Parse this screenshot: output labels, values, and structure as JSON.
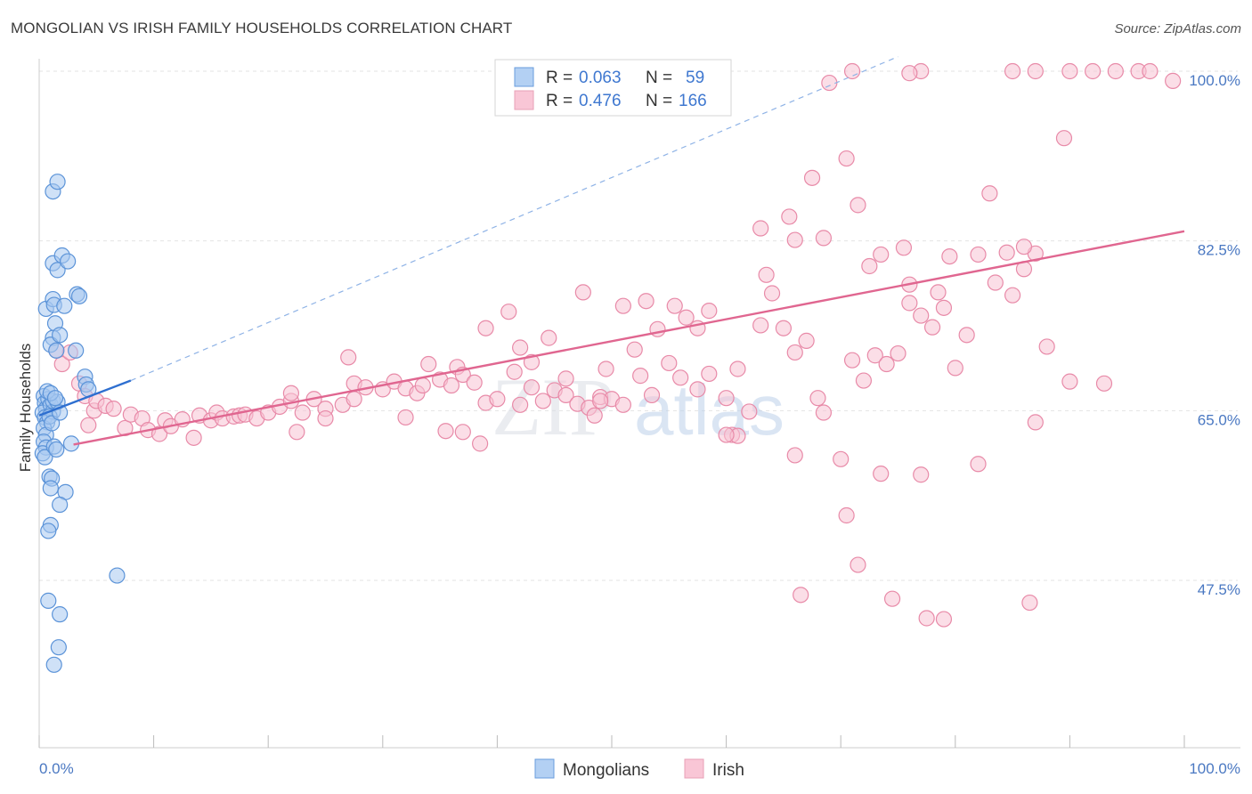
{
  "title": "MONGOLIAN VS IRISH FAMILY HOUSEHOLDS CORRELATION CHART",
  "source": "Source: ZipAtlas.com",
  "chart_data": {
    "type": "scatter",
    "ylabel": "Family Households",
    "xlim": [
      0,
      100
    ],
    "ylim": [
      32,
      101
    ],
    "x_tick_labels": {
      "left": "0.0%",
      "right": "100.0%"
    },
    "y_ticks": [
      {
        "value": 100.0,
        "label": "100.0%"
      },
      {
        "value": 82.5,
        "label": "82.5%"
      },
      {
        "value": 65.0,
        "label": "65.0%"
      },
      {
        "value": 47.5,
        "label": "47.5%"
      }
    ],
    "watermark": {
      "zip": "ZIP",
      "atlas": "atlas"
    },
    "legend": {
      "r_label": "R =",
      "n_label": "N =",
      "entries": [
        {
          "r": "0.063",
          "n": "59"
        },
        {
          "r": "0.476",
          "n": "166"
        }
      ]
    },
    "colors": {
      "mongolians_fill": "#a8c8f0",
      "mongolians_stroke": "#5b93d8",
      "mongolians_line": "#2e6fd0",
      "irish_fill": "#f7c3d4",
      "irish_stroke": "#e88aa8",
      "irish_line": "#e06690"
    },
    "series": [
      {
        "name": "Mongolians",
        "trend": {
          "x": [
            0,
            8
          ],
          "y": [
            64.5,
            68.1
          ]
        },
        "trend_extended": {
          "x": [
            8,
            75
          ],
          "y": [
            68.1,
            101.5
          ]
        },
        "points": [
          [
            0.4,
            66.5
          ],
          [
            0.5,
            65.8
          ],
          [
            0.6,
            65.2
          ],
          [
            0.3,
            64.8
          ],
          [
            0.5,
            64.3
          ],
          [
            0.7,
            63.8
          ],
          [
            0.4,
            63.2
          ],
          [
            0.6,
            62.5
          ],
          [
            0.4,
            61.8
          ],
          [
            0.6,
            61.2
          ],
          [
            0.3,
            60.6
          ],
          [
            0.5,
            60.2
          ],
          [
            0.8,
            66.2
          ],
          [
            1.0,
            65.6
          ],
          [
            1.2,
            64.9
          ],
          [
            0.9,
            64.4
          ],
          [
            1.1,
            63.7
          ],
          [
            1.3,
            61.3
          ],
          [
            1.5,
            61.0
          ],
          [
            1.2,
            66.0
          ],
          [
            1.6,
            65.9
          ],
          [
            0.7,
            67.0
          ],
          [
            1.0,
            66.8
          ],
          [
            1.4,
            66.3
          ],
          [
            0.6,
            75.5
          ],
          [
            1.2,
            76.5
          ],
          [
            1.3,
            75.9
          ],
          [
            1.4,
            74.0
          ],
          [
            1.2,
            72.5
          ],
          [
            1.0,
            71.8
          ],
          [
            1.5,
            71.2
          ],
          [
            1.8,
            72.8
          ],
          [
            1.2,
            80.2
          ],
          [
            1.6,
            79.5
          ],
          [
            2.0,
            81.0
          ],
          [
            2.5,
            80.4
          ],
          [
            2.2,
            75.8
          ],
          [
            3.3,
            77.0
          ],
          [
            3.5,
            76.8
          ],
          [
            1.2,
            87.6
          ],
          [
            1.6,
            88.6
          ],
          [
            3.2,
            71.2
          ],
          [
            4.0,
            68.5
          ],
          [
            4.1,
            67.7
          ],
          [
            4.3,
            67.2
          ],
          [
            2.8,
            61.6
          ],
          [
            0.9,
            58.2
          ],
          [
            1.1,
            58.0
          ],
          [
            1.0,
            57.0
          ],
          [
            2.3,
            56.6
          ],
          [
            1.8,
            55.3
          ],
          [
            1.0,
            53.2
          ],
          [
            0.8,
            52.6
          ],
          [
            6.8,
            48.0
          ],
          [
            0.8,
            45.4
          ],
          [
            1.8,
            44.0
          ],
          [
            1.7,
            40.6
          ],
          [
            1.3,
            38.8
          ],
          [
            1.8,
            64.8
          ]
        ]
      },
      {
        "name": "Irish",
        "trend": {
          "x": [
            3,
            100
          ],
          "y": [
            61.5,
            83.5
          ]
        },
        "points": [
          [
            1.5,
            71.2
          ],
          [
            2.0,
            69.8
          ],
          [
            2.7,
            71.0
          ],
          [
            3.5,
            67.8
          ],
          [
            4.0,
            66.5
          ],
          [
            4.8,
            65.0
          ],
          [
            4.3,
            63.5
          ],
          [
            5.0,
            66.0
          ],
          [
            5.8,
            65.5
          ],
          [
            6.5,
            65.2
          ],
          [
            7.5,
            63.2
          ],
          [
            8.0,
            64.6
          ],
          [
            9.0,
            64.2
          ],
          [
            9.5,
            63.0
          ],
          [
            10.5,
            62.6
          ],
          [
            11.0,
            64.0
          ],
          [
            11.5,
            63.4
          ],
          [
            12.5,
            64.1
          ],
          [
            13.5,
            62.2
          ],
          [
            14.0,
            64.5
          ],
          [
            15.0,
            64.0
          ],
          [
            15.5,
            64.8
          ],
          [
            16.0,
            64.2
          ],
          [
            17.0,
            64.4
          ],
          [
            17.5,
            64.5
          ],
          [
            18.0,
            64.6
          ],
          [
            19.0,
            64.2
          ],
          [
            20.0,
            64.8
          ],
          [
            21.0,
            65.4
          ],
          [
            22.0,
            66.0
          ],
          [
            23.0,
            64.8
          ],
          [
            24.0,
            66.2
          ],
          [
            22.5,
            62.8
          ],
          [
            25.0,
            65.2
          ],
          [
            26.5,
            65.6
          ],
          [
            27.5,
            67.8
          ],
          [
            28.5,
            67.4
          ],
          [
            30.0,
            67.2
          ],
          [
            31.0,
            68.0
          ],
          [
            32.0,
            67.3
          ],
          [
            33.0,
            66.8
          ],
          [
            34.0,
            69.8
          ],
          [
            35.0,
            68.2
          ],
          [
            36.0,
            67.6
          ],
          [
            36.5,
            69.5
          ],
          [
            37.0,
            68.7
          ],
          [
            38.0,
            67.9
          ],
          [
            39.0,
            65.8
          ],
          [
            40.0,
            66.2
          ],
          [
            41.5,
            69.0
          ],
          [
            42.0,
            65.6
          ],
          [
            43.0,
            67.4
          ],
          [
            44.0,
            66.0
          ],
          [
            45.0,
            67.1
          ],
          [
            46.0,
            66.6
          ],
          [
            47.0,
            65.7
          ],
          [
            48.0,
            65.3
          ],
          [
            49.0,
            66.4
          ],
          [
            50.0,
            66.2
          ],
          [
            51.0,
            65.6
          ],
          [
            52.5,
            68.6
          ],
          [
            53.5,
            66.6
          ],
          [
            55.0,
            69.9
          ],
          [
            56.0,
            68.4
          ],
          [
            57.5,
            67.2
          ],
          [
            58.5,
            68.8
          ],
          [
            60.0,
            66.3
          ],
          [
            61.0,
            69.3
          ],
          [
            62.0,
            64.9
          ],
          [
            22.0,
            66.8
          ],
          [
            25.0,
            64.2
          ],
          [
            27.0,
            70.5
          ],
          [
            27.5,
            66.2
          ],
          [
            32.0,
            64.3
          ],
          [
            33.5,
            67.6
          ],
          [
            35.5,
            62.9
          ],
          [
            37.0,
            62.8
          ],
          [
            38.5,
            61.6
          ],
          [
            39.0,
            73.5
          ],
          [
            41.0,
            75.2
          ],
          [
            42.0,
            71.5
          ],
          [
            43.0,
            70.0
          ],
          [
            44.5,
            72.5
          ],
          [
            46.0,
            68.3
          ],
          [
            47.5,
            77.2
          ],
          [
            48.5,
            64.5
          ],
          [
            49.5,
            69.3
          ],
          [
            51.0,
            75.8
          ],
          [
            52.0,
            71.3
          ],
          [
            53.0,
            76.3
          ],
          [
            54.0,
            73.4
          ],
          [
            55.5,
            75.8
          ],
          [
            56.5,
            74.6
          ],
          [
            57.5,
            73.5
          ],
          [
            58.5,
            75.3
          ],
          [
            49.0,
            66.0
          ],
          [
            60.5,
            62.5
          ],
          [
            61.0,
            62.4
          ],
          [
            63.0,
            73.8
          ],
          [
            64.0,
            77.1
          ],
          [
            65.0,
            73.5
          ],
          [
            66.0,
            71.0
          ],
          [
            67.0,
            72.2
          ],
          [
            68.0,
            66.3
          ],
          [
            68.5,
            64.8
          ],
          [
            70.0,
            60.0
          ],
          [
            71.0,
            70.2
          ],
          [
            72.0,
            68.1
          ],
          [
            73.0,
            70.7
          ],
          [
            74.0,
            69.8
          ],
          [
            75.0,
            70.9
          ],
          [
            76.0,
            76.1
          ],
          [
            77.0,
            74.8
          ],
          [
            78.0,
            73.6
          ],
          [
            80.0,
            69.4
          ],
          [
            81.0,
            72.8
          ],
          [
            82.0,
            81.1
          ],
          [
            83.0,
            87.4
          ],
          [
            85.0,
            76.9
          ],
          [
            86.0,
            79.6
          ],
          [
            87.0,
            81.2
          ],
          [
            88.0,
            71.6
          ],
          [
            90.0,
            68.0
          ],
          [
            63.5,
            79.0
          ],
          [
            63.0,
            83.8
          ],
          [
            65.5,
            85.0
          ],
          [
            66.0,
            82.6
          ],
          [
            67.5,
            89.0
          ],
          [
            68.5,
            82.8
          ],
          [
            70.5,
            91.0
          ],
          [
            71.5,
            86.2
          ],
          [
            72.5,
            79.9
          ],
          [
            73.5,
            81.1
          ],
          [
            75.5,
            81.8
          ],
          [
            76.0,
            78.0
          ],
          [
            78.5,
            77.2
          ],
          [
            79.5,
            80.9
          ],
          [
            79.0,
            75.6
          ],
          [
            83.5,
            78.2
          ],
          [
            84.5,
            81.3
          ],
          [
            86.0,
            81.9
          ],
          [
            93.0,
            67.8
          ],
          [
            70.5,
            54.2
          ],
          [
            71.5,
            49.1
          ],
          [
            73.5,
            58.5
          ],
          [
            66.5,
            46.0
          ],
          [
            77.5,
            43.6
          ],
          [
            79.0,
            43.5
          ],
          [
            82.0,
            59.5
          ],
          [
            86.5,
            45.2
          ],
          [
            66.0,
            60.4
          ],
          [
            77.0,
            58.4
          ],
          [
            74.5,
            45.6
          ],
          [
            69.0,
            98.8
          ],
          [
            71.0,
            100.0
          ],
          [
            85.0,
            100.0
          ],
          [
            87.0,
            100.0
          ],
          [
            90.0,
            100.0
          ],
          [
            92.0,
            100.0
          ],
          [
            94.0,
            100.0
          ],
          [
            96.0,
            100.0
          ],
          [
            97.0,
            100.0
          ],
          [
            99.0,
            99.0
          ],
          [
            77.0,
            100.0
          ],
          [
            76.0,
            99.8
          ],
          [
            89.5,
            93.1
          ],
          [
            87.0,
            63.8
          ],
          [
            60.0,
            62.5
          ]
        ]
      }
    ]
  },
  "bottom_legend": [
    "Mongolians",
    "Irish"
  ]
}
